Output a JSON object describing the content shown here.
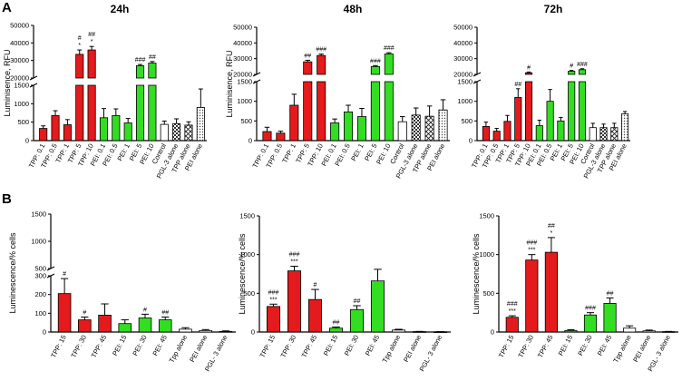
{
  "figure": {
    "panel_letters": [
      "A",
      "B"
    ]
  },
  "colors": {
    "tpp": "#e41a1c",
    "pei": "#33dd22",
    "control": "#ffffff"
  },
  "chart_data": [
    {
      "type": "bar",
      "panel": "A",
      "title": "24h",
      "ylabel": "Luminisence, RFU",
      "axis": {
        "low": [
          0,
          1500
        ],
        "low_ticks": [
          0,
          500,
          1000,
          1500
        ],
        "high": [
          20000,
          50000
        ],
        "high_ticks": [
          20000,
          30000,
          40000,
          50000
        ],
        "break": true
      },
      "categories": [
        "TPP: 0.1",
        "TPP: 0.5",
        "TPP: 1",
        "TPP: 5",
        "TPP: 10",
        "PEI: 0.1",
        "PEI: 0.5",
        "PEI: 1",
        "PEI: 5",
        "PEI: 10",
        "Control",
        "PGL-3 alone",
        "TPP alone",
        "PEI alone"
      ],
      "fills": [
        "tpp",
        "tpp",
        "tpp",
        "tpp",
        "tpp",
        "pei",
        "pei",
        "pei",
        "pei",
        "pei",
        "control",
        "checker",
        "check2",
        "dots"
      ],
      "values": [
        330,
        680,
        430,
        33500,
        36000,
        620,
        680,
        480,
        27000,
        28500,
        440,
        460,
        420,
        900
      ],
      "errors": [
        70,
        130,
        140,
        2500,
        2000,
        250,
        180,
        120,
        700,
        900,
        90,
        130,
        90,
        500
      ],
      "annotations": [
        [
          "",
          ""
        ],
        [
          "",
          ""
        ],
        [
          "",
          ""
        ],
        [
          "*",
          "#"
        ],
        [
          "*",
          "##"
        ],
        [
          "",
          ""
        ],
        [
          "",
          ""
        ],
        [
          "",
          ""
        ],
        [
          "###",
          ""
        ],
        [
          "##",
          ""
        ],
        [
          "",
          ""
        ],
        [
          "",
          ""
        ],
        [
          "",
          ""
        ],
        [
          "",
          ""
        ]
      ]
    },
    {
      "type": "bar",
      "panel": "A",
      "title": "48h",
      "ylabel": "Luminisence, RFU",
      "axis": {
        "low": [
          0,
          1500
        ],
        "low_ticks": [
          0,
          500,
          1000,
          1500
        ],
        "high": [
          20000,
          50000
        ],
        "high_ticks": [
          20000,
          30000,
          40000,
          50000
        ],
        "break": true
      },
      "categories": [
        "TPP: 0.1",
        "TPP: 0.5",
        "TPP: 1",
        "TPP: 5",
        "TPP: 10",
        "PEI: 0.1",
        "PEI: 0.5",
        "PEI: 1",
        "PEI: 5",
        "PEI: 10",
        "Control",
        "PGL-3 alone",
        "TPP alone",
        "PEI alone"
      ],
      "fills": [
        "tpp",
        "tpp",
        "tpp",
        "tpp",
        "tpp",
        "pei",
        "pei",
        "pei",
        "pei",
        "pei",
        "control",
        "checker",
        "check2",
        "dots"
      ],
      "values": [
        230,
        190,
        900,
        28000,
        32000,
        450,
        730,
        610,
        25000,
        33000,
        480,
        650,
        620,
        780
      ],
      "errors": [
        110,
        50,
        280,
        1000,
        900,
        100,
        170,
        210,
        600,
        800,
        130,
        180,
        260,
        260
      ],
      "annotations": [
        [
          "",
          ""
        ],
        [
          "",
          ""
        ],
        [
          "",
          ""
        ],
        [
          "##",
          ""
        ],
        [
          "###",
          ""
        ],
        [
          "",
          ""
        ],
        [
          "",
          ""
        ],
        [
          "",
          ""
        ],
        [
          "###",
          ""
        ],
        [
          "###",
          ""
        ],
        [
          "",
          ""
        ],
        [
          "",
          ""
        ],
        [
          "",
          ""
        ],
        [
          "",
          ""
        ]
      ]
    },
    {
      "type": "bar",
      "panel": "A",
      "title": "72h",
      "ylabel": "",
      "axis": {
        "low": [
          0,
          1500
        ],
        "low_ticks": [
          0,
          500,
          1000,
          1500
        ],
        "high": [
          20000,
          50000
        ],
        "high_ticks": [
          20000,
          30000,
          40000,
          50000
        ],
        "break": true
      },
      "categories": [
        "TPP: 0.1",
        "TPP: 0.5",
        "TPP: 1",
        "TPP: 5",
        "TPP: 10",
        "PEI: 0.1",
        "PEI: 0.5",
        "PEI: 1",
        "PEI: 5",
        "PEI: 10",
        "Control",
        "PGL-3 alone",
        "TPP alone",
        "PEI alone"
      ],
      "fills": [
        "tpp",
        "tpp",
        "tpp",
        "tpp",
        "tpp",
        "pei",
        "pei",
        "pei",
        "pei",
        "pei",
        "control",
        "checker",
        "check2",
        "dots"
      ],
      "values": [
        360,
        240,
        490,
        1100,
        21000,
        380,
        1000,
        500,
        22000,
        23000,
        330,
        330,
        330,
        680
      ],
      "errors": [
        110,
        70,
        150,
        220,
        500,
        140,
        300,
        90,
        500,
        600,
        110,
        90,
        110,
        60
      ],
      "annotations": [
        [
          "",
          ""
        ],
        [
          "",
          ""
        ],
        [
          "",
          ""
        ],
        [
          "##",
          ""
        ],
        [
          "#",
          ""
        ],
        [
          "",
          ""
        ],
        [
          "",
          ""
        ],
        [
          "",
          ""
        ],
        [
          "#",
          ""
        ],
        [
          "###",
          ""
        ],
        [
          "",
          ""
        ],
        [
          "",
          ""
        ],
        [
          "",
          ""
        ],
        [
          "",
          ""
        ]
      ]
    },
    {
      "type": "bar",
      "panel": "B",
      "title": "",
      "ylabel": "Luminescence/% cells",
      "axis": {
        "low": [
          0,
          300
        ],
        "low_ticks": [
          0,
          100,
          200,
          300
        ],
        "high": [
          500,
          1500
        ],
        "high_ticks": [
          500,
          1000,
          1500
        ],
        "break": true
      },
      "categories": [
        "TPP: 15",
        "TPP: 30",
        "TPP: 45",
        "PEI: 15",
        "PEI: 30",
        "PEI: 45",
        "Tpp alone",
        "PEI alone",
        "PGL- 3 alone"
      ],
      "fills": [
        "tpp",
        "tpp",
        "tpp",
        "pei",
        "pei",
        "pei",
        "control",
        "control",
        "control"
      ],
      "values": [
        205,
        65,
        90,
        45,
        75,
        65,
        15,
        8,
        3
      ],
      "errors": [
        80,
        15,
        60,
        20,
        20,
        15,
        8,
        5,
        3
      ],
      "annotations": [
        [
          "#",
          ""
        ],
        [
          "#",
          ""
        ],
        [
          "",
          ""
        ],
        [
          "",
          ""
        ],
        [
          "#",
          ""
        ],
        [
          "##",
          ""
        ],
        [
          "",
          ""
        ],
        [
          "",
          ""
        ],
        [
          "",
          ""
        ]
      ]
    },
    {
      "type": "bar",
      "panel": "B",
      "title": "",
      "ylabel": "Luminescence/% cells",
      "axis": {
        "low": [
          0,
          1500
        ],
        "low_ticks": [
          0,
          500,
          1000,
          1500
        ],
        "break": false
      },
      "categories": [
        "TPP: 15",
        "TPP: 30",
        "TPP: 45",
        "PEI: 15",
        "PEI: 30",
        "PEI: 45",
        "Tpp alone",
        "PEI alone",
        "PGL- 3 alone"
      ],
      "fills": [
        "tpp",
        "tpp",
        "tpp",
        "pei",
        "pei",
        "pei",
        "control",
        "control",
        "control"
      ],
      "values": [
        330,
        790,
        420,
        50,
        290,
        660,
        25,
        5,
        3
      ],
      "errors": [
        30,
        60,
        130,
        15,
        50,
        150,
        10,
        3,
        2
      ],
      "annotations": [
        [
          "***",
          "###"
        ],
        [
          "***",
          "###"
        ],
        [
          "#",
          ""
        ],
        [
          "##",
          ""
        ],
        [
          "##",
          ""
        ],
        [
          "",
          ""
        ],
        [
          "",
          ""
        ],
        [
          "",
          ""
        ],
        [
          "",
          ""
        ]
      ]
    },
    {
      "type": "bar",
      "panel": "B",
      "title": "",
      "ylabel": "Luminescence/% cells",
      "axis": {
        "low": [
          0,
          1500
        ],
        "low_ticks": [
          0,
          500,
          1000,
          1500
        ],
        "break": false
      },
      "categories": [
        "TPP: 15",
        "TPP: 30",
        "TPP: 45",
        "PEI: 15",
        "PEI: 30",
        "PEI: 45",
        "Tpp alone",
        "PEI alone",
        "PGL- 3 alone"
      ],
      "fills": [
        "tpp",
        "tpp",
        "tpp",
        "pei",
        "pei",
        "pei",
        "control",
        "control",
        "control"
      ],
      "values": [
        190,
        930,
        1030,
        20,
        220,
        370,
        50,
        15,
        5
      ],
      "errors": [
        20,
        70,
        190,
        10,
        30,
        70,
        30,
        10,
        3
      ],
      "annotations": [
        [
          "***",
          "###"
        ],
        [
          "***",
          "###"
        ],
        [
          "*",
          "##"
        ],
        [
          "",
          ""
        ],
        [
          "###",
          ""
        ],
        [
          "##",
          ""
        ],
        [
          "",
          ""
        ],
        [
          "",
          ""
        ],
        [
          "",
          ""
        ]
      ]
    }
  ]
}
